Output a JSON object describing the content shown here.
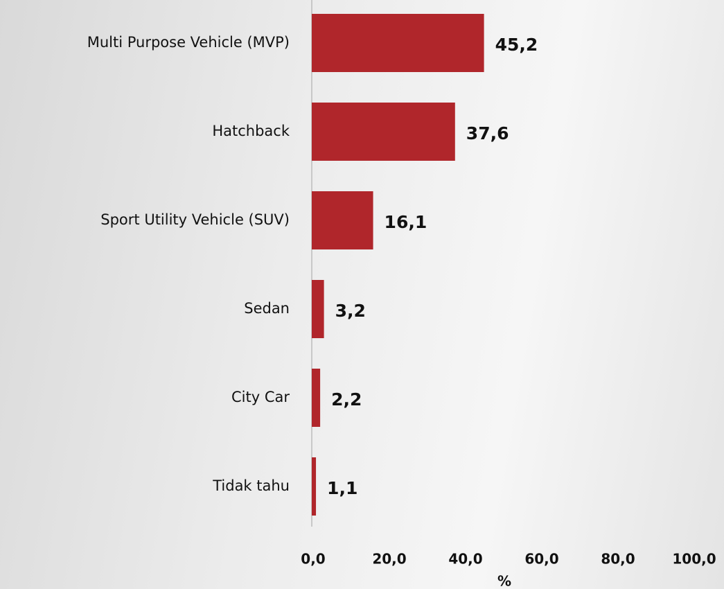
{
  "chart_data": {
    "type": "bar",
    "orientation": "horizontal",
    "categories": [
      "Multi Purpose Vehicle (MVP)",
      "Hatchback",
      "Sport Utility Vehicle (SUV)",
      "Sedan",
      "City Car",
      "Tidak tahu"
    ],
    "values": [
      45.2,
      37.6,
      16.1,
      3.2,
      2.2,
      1.1
    ],
    "value_labels": [
      "45,2",
      "37,6",
      "16,1",
      "3,2",
      "2,2",
      "1,1"
    ],
    "color": "#b0262b",
    "xlabel": "%",
    "xlim": [
      0,
      100
    ],
    "xticks": [
      {
        "value": 0,
        "label": "0,0"
      },
      {
        "value": 20,
        "label": "20,0"
      },
      {
        "value": 40,
        "label": "40,0"
      },
      {
        "value": 60,
        "label": "60,0"
      },
      {
        "value": 80,
        "label": "80,0"
      },
      {
        "value": 100,
        "label": "100,0"
      }
    ]
  }
}
